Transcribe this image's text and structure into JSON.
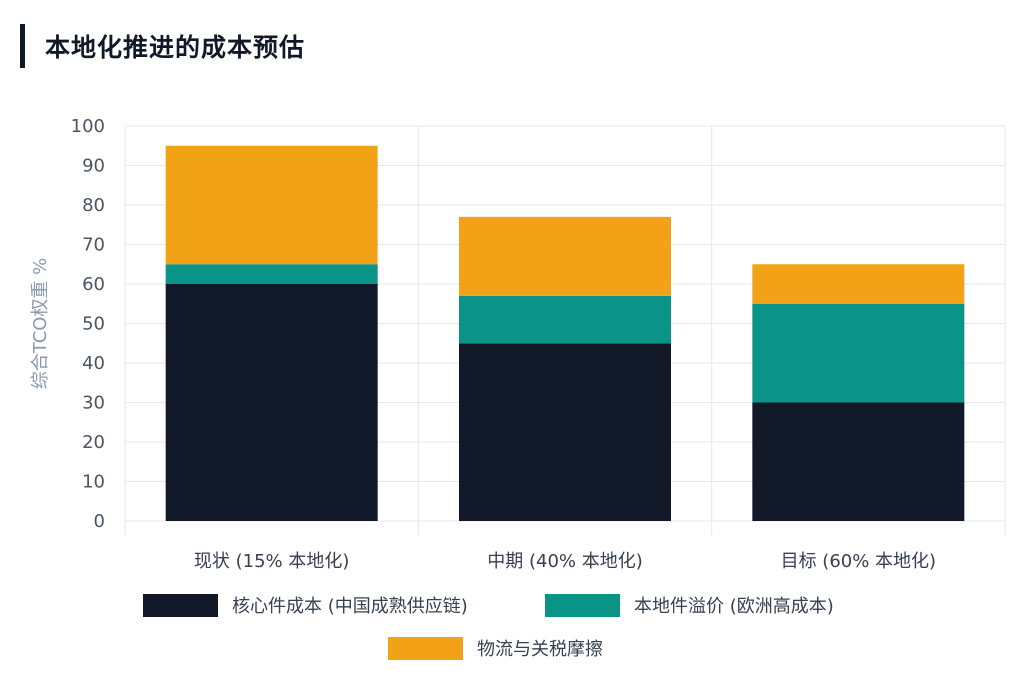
{
  "page": {
    "title": "本地化推进的成本预估"
  },
  "chart_data": {
    "type": "bar",
    "stacked": true,
    "ylabel": "综合TCO权重 %",
    "ylim": [
      0,
      100
    ],
    "yticks": [
      0,
      10,
      20,
      30,
      40,
      50,
      60,
      70,
      80,
      90,
      100
    ],
    "grid": true,
    "legend_position": "bottom",
    "categories": [
      "现状 (15% 本地化)",
      "中期 (40% 本地化)",
      "目标 (60% 本地化)"
    ],
    "series": [
      {
        "name": "核心件成本 (中国成熟供应链)",
        "color": "#111827",
        "values": [
          60,
          45,
          30
        ]
      },
      {
        "name": "本地件溢价 (欧洲高成本)",
        "color": "#0a9488",
        "values": [
          5,
          12,
          25
        ]
      },
      {
        "name": "物流与关税摩擦",
        "color": "#f2a216",
        "values": [
          30,
          20,
          10
        ]
      }
    ]
  }
}
